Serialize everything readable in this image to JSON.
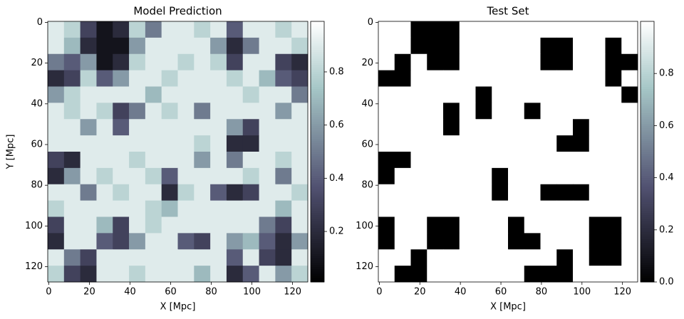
{
  "chart_data": [
    {
      "type": "heatmap",
      "title": "Model Prediction",
      "xlabel": "X [Mpc]",
      "ylabel": "Y [Mpc]",
      "xlim": [
        -0.5,
        127.5
      ],
      "ylim": [
        127.5,
        -0.5
      ],
      "xticks": [
        0,
        20,
        40,
        60,
        80,
        100,
        120
      ],
      "yticks": [
        0,
        20,
        40,
        60,
        80,
        100,
        120
      ],
      "cmap": "bone",
      "clim": [
        0.01,
        0.99
      ],
      "cticks": [
        0.2,
        0.4,
        0.6,
        0.8
      ],
      "z": [
        [
          0.9,
          0.8,
          0.3,
          0.1,
          0.2,
          0.8,
          0.5,
          0.9,
          0.9,
          0.8,
          0.9,
          0.4,
          0.9,
          0.9,
          0.8,
          0.9
        ],
        [
          0.9,
          0.7,
          0.2,
          0.1,
          0.1,
          0.6,
          0.9,
          0.9,
          0.9,
          0.9,
          0.6,
          0.2,
          0.5,
          0.9,
          0.9,
          0.8
        ],
        [
          0.5,
          0.4,
          0.6,
          0.1,
          0.2,
          0.8,
          0.9,
          0.9,
          0.8,
          0.9,
          0.8,
          0.3,
          0.9,
          0.9,
          0.3,
          0.2
        ],
        [
          0.2,
          0.3,
          0.8,
          0.4,
          0.6,
          0.9,
          0.9,
          0.8,
          0.9,
          0.9,
          0.9,
          0.8,
          0.9,
          0.7,
          0.4,
          0.3
        ],
        [
          0.6,
          0.8,
          0.9,
          0.9,
          0.9,
          0.9,
          0.7,
          0.9,
          0.9,
          0.9,
          0.9,
          0.9,
          0.8,
          0.9,
          0.9,
          0.5
        ],
        [
          0.9,
          0.8,
          0.9,
          0.8,
          0.3,
          0.5,
          0.9,
          0.8,
          0.9,
          0.5,
          0.9,
          0.9,
          0.9,
          0.9,
          0.6,
          0.9
        ],
        [
          0.9,
          0.9,
          0.6,
          0.9,
          0.4,
          0.9,
          0.9,
          0.9,
          0.9,
          0.9,
          0.9,
          0.6,
          0.3,
          0.9,
          0.9,
          0.9
        ],
        [
          0.9,
          0.9,
          0.9,
          0.9,
          0.9,
          0.9,
          0.9,
          0.9,
          0.9,
          0.8,
          0.9,
          0.2,
          0.2,
          0.9,
          0.9,
          0.9
        ],
        [
          0.3,
          0.2,
          0.9,
          0.9,
          0.9,
          0.8,
          0.9,
          0.9,
          0.9,
          0.6,
          0.9,
          0.5,
          0.9,
          0.9,
          0.8,
          0.9
        ],
        [
          0.2,
          0.6,
          0.9,
          0.8,
          0.9,
          0.9,
          0.8,
          0.4,
          0.9,
          0.9,
          0.9,
          0.9,
          0.8,
          0.9,
          0.5,
          0.9
        ],
        [
          0.9,
          0.9,
          0.5,
          0.9,
          0.8,
          0.9,
          0.9,
          0.2,
          0.8,
          0.9,
          0.4,
          0.2,
          0.3,
          0.9,
          0.9,
          0.8
        ],
        [
          0.8,
          0.9,
          0.9,
          0.9,
          0.9,
          0.9,
          0.8,
          0.7,
          0.9,
          0.9,
          0.9,
          0.9,
          0.9,
          0.9,
          0.7,
          0.9
        ],
        [
          0.3,
          0.9,
          0.9,
          0.7,
          0.3,
          0.9,
          0.8,
          0.9,
          0.9,
          0.9,
          0.9,
          0.9,
          0.9,
          0.5,
          0.3,
          0.9
        ],
        [
          0.2,
          0.9,
          0.9,
          0.4,
          0.3,
          0.6,
          0.9,
          0.9,
          0.4,
          0.3,
          0.9,
          0.6,
          0.7,
          0.4,
          0.2,
          0.6
        ],
        [
          0.9,
          0.5,
          0.3,
          0.9,
          0.9,
          0.9,
          0.9,
          0.9,
          0.9,
          0.9,
          0.9,
          0.4,
          0.9,
          0.3,
          0.2,
          0.9
        ],
        [
          0.8,
          0.3,
          0.2,
          0.9,
          0.9,
          0.8,
          0.9,
          0.9,
          0.9,
          0.7,
          0.9,
          0.2,
          0.4,
          0.9,
          0.6,
          0.8
        ]
      ]
    },
    {
      "type": "heatmap",
      "title": "Test Set",
      "xlabel": "X [Mpc]",
      "xlim": [
        -0.5,
        127.5
      ],
      "ylim": [
        127.5,
        -0.5
      ],
      "xticks": [
        0,
        20,
        40,
        60,
        80,
        100,
        120
      ],
      "yticks": [
        0,
        20,
        40,
        60,
        80,
        100,
        120
      ],
      "cmap": "bone",
      "clim": [
        0,
        1
      ],
      "cticks": [
        {
          "value": 0,
          "label": "0.0"
        },
        0.2,
        0.4,
        0.6,
        0.8
      ],
      "z": [
        [
          1,
          1,
          0,
          0,
          0,
          1,
          1,
          1,
          1,
          1,
          1,
          1,
          1,
          1,
          1,
          1
        ],
        [
          1,
          1,
          0,
          0,
          0,
          1,
          1,
          1,
          1,
          1,
          0,
          0,
          1,
          1,
          0,
          1
        ],
        [
          1,
          0,
          1,
          0,
          0,
          1,
          1,
          1,
          1,
          1,
          0,
          0,
          1,
          1,
          0,
          0
        ],
        [
          0,
          0,
          1,
          1,
          1,
          1,
          1,
          1,
          1,
          1,
          1,
          1,
          1,
          1,
          0,
          1
        ],
        [
          1,
          1,
          1,
          1,
          1,
          1,
          0,
          1,
          1,
          1,
          1,
          1,
          1,
          1,
          1,
          0
        ],
        [
          1,
          1,
          1,
          1,
          0,
          1,
          0,
          1,
          1,
          0,
          1,
          1,
          1,
          1,
          1,
          1
        ],
        [
          1,
          1,
          1,
          1,
          0,
          1,
          1,
          1,
          1,
          1,
          1,
          1,
          0,
          1,
          1,
          1
        ],
        [
          1,
          1,
          1,
          1,
          1,
          1,
          1,
          1,
          1,
          1,
          1,
          0,
          0,
          1,
          1,
          1
        ],
        [
          0,
          0,
          1,
          1,
          1,
          1,
          1,
          1,
          1,
          1,
          1,
          1,
          1,
          1,
          1,
          1
        ],
        [
          0,
          1,
          1,
          1,
          1,
          1,
          1,
          0,
          1,
          1,
          1,
          1,
          1,
          1,
          1,
          1
        ],
        [
          1,
          1,
          1,
          1,
          1,
          1,
          1,
          0,
          1,
          1,
          0,
          0,
          0,
          1,
          1,
          1
        ],
        [
          1,
          1,
          1,
          1,
          1,
          1,
          1,
          1,
          1,
          1,
          1,
          1,
          1,
          1,
          1,
          1
        ],
        [
          0,
          1,
          1,
          0,
          0,
          1,
          1,
          1,
          0,
          1,
          1,
          1,
          1,
          0,
          0,
          1
        ],
        [
          0,
          1,
          1,
          0,
          0,
          1,
          1,
          1,
          0,
          0,
          1,
          1,
          1,
          0,
          0,
          1
        ],
        [
          1,
          1,
          0,
          1,
          1,
          1,
          1,
          1,
          1,
          1,
          1,
          0,
          1,
          0,
          0,
          1
        ],
        [
          1,
          0,
          0,
          1,
          1,
          1,
          1,
          1,
          1,
          0,
          0,
          0,
          1,
          1,
          1,
          1
        ]
      ]
    }
  ]
}
